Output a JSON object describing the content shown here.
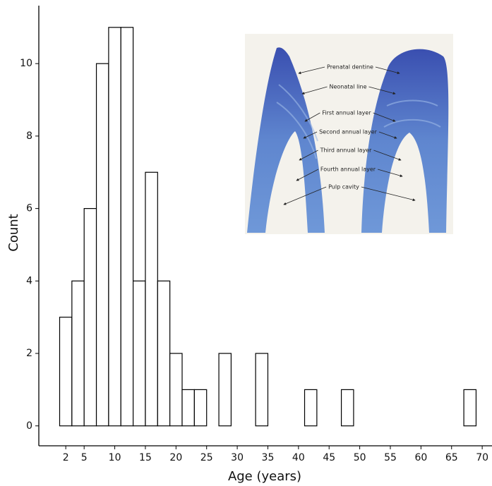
{
  "chart_data": {
    "type": "histogram",
    "xlabel": "Age (years)",
    "ylabel": "Count",
    "bins": [
      1,
      3,
      5,
      7,
      9,
      11,
      13,
      15,
      17,
      19,
      21,
      23,
      25,
      27,
      29,
      31,
      33,
      35,
      37,
      39,
      41,
      43,
      45,
      47,
      49,
      51,
      53,
      55,
      57,
      59,
      61,
      63,
      65,
      67,
      69
    ],
    "values": [
      3,
      4,
      6,
      10,
      11,
      11,
      4,
      7,
      4,
      2,
      1,
      1,
      0,
      2,
      0,
      0,
      2,
      0,
      0,
      0,
      1,
      0,
      0,
      1,
      0,
      0,
      0,
      0,
      0,
      0,
      0,
      0,
      0,
      1
    ],
    "color": "#ffffff",
    "edgecolor": "#000000",
    "xlim": [
      -2.4,
      71.6
    ],
    "ylim": [
      -0.55,
      11.6
    ],
    "xticks": [
      2,
      5,
      10,
      15,
      20,
      25,
      30,
      35,
      40,
      45,
      50,
      55,
      60,
      65,
      70
    ],
    "yticks": [
      0,
      2,
      4,
      6,
      8,
      10
    ],
    "inset": {
      "labels": [
        "Prenatal dentine",
        "Neonatal line",
        "First annual layer",
        "Second annual layer",
        "Third annual layer",
        "Fourth annual layer",
        "Pulp cavity"
      ]
    }
  }
}
